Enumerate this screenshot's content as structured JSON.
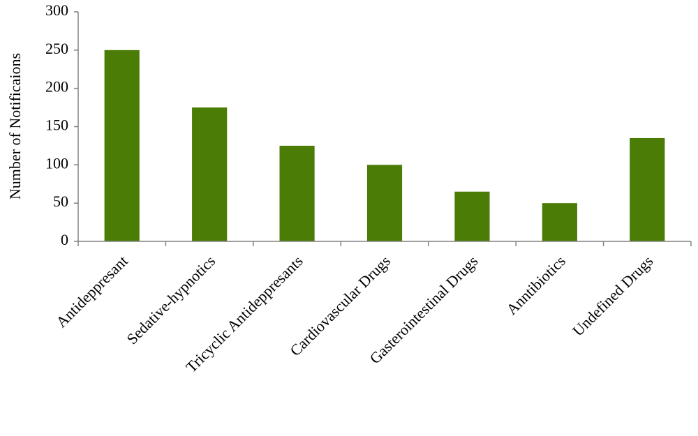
{
  "chart_data": {
    "type": "bar",
    "y_label": "Number of Notificaions",
    "categories": [
      "Antideppresant",
      "Sedative-hypnotics",
      "Tricyclic Antideppresants",
      "Cardiovascular Drugs",
      "Gasterointestinal Drugs",
      "Anntibiotics",
      "Undefined Drugs"
    ],
    "values": [
      250,
      175,
      125,
      100,
      65,
      50,
      135
    ],
    "color": "#4a7c06",
    "ylim": [
      0,
      300
    ],
    "yticks": [
      0,
      50,
      100,
      150,
      200,
      250,
      300
    ],
    "grid": false
  }
}
